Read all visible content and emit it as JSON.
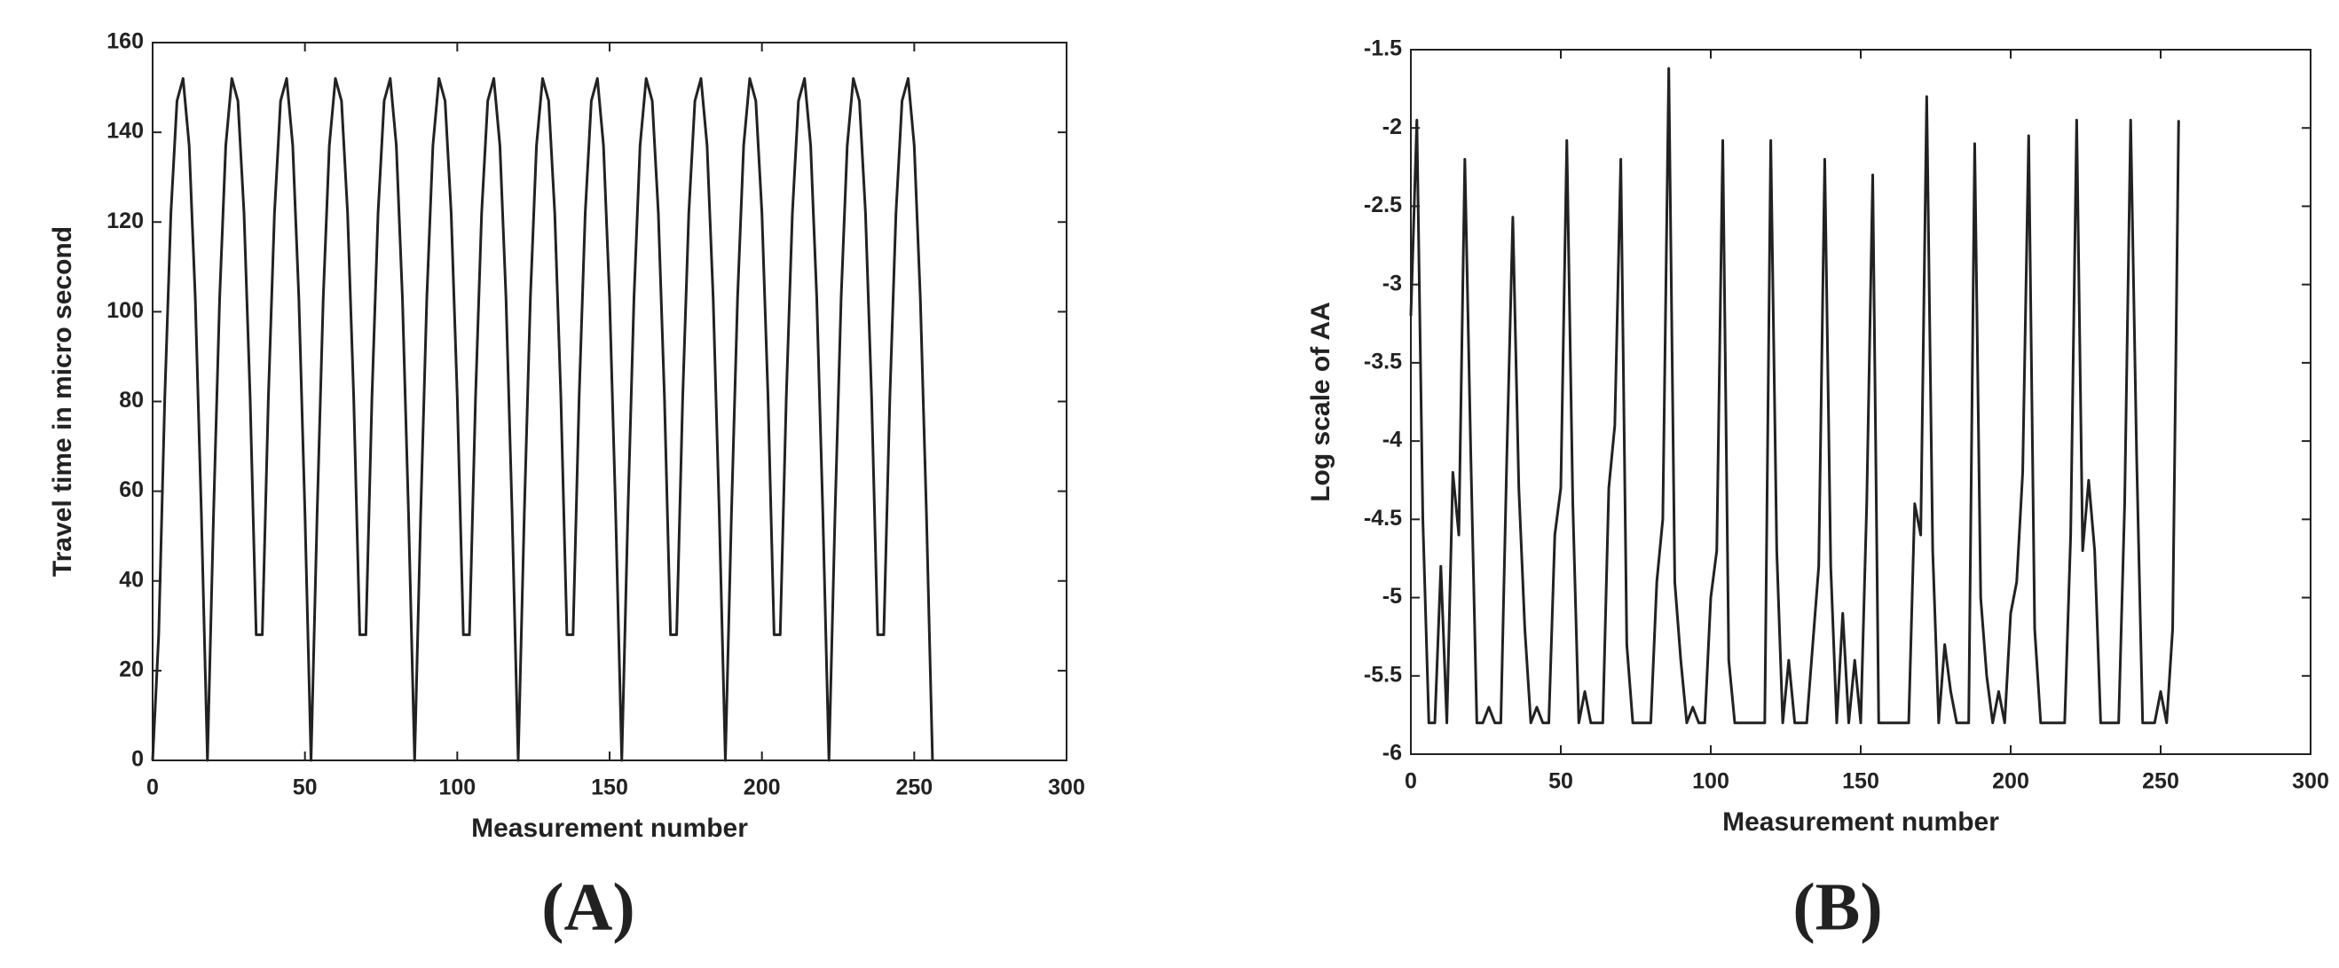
{
  "chart_data": [
    {
      "type": "line",
      "panel_label": "(A)",
      "x_label": "Measurement number",
      "y_label": "Travel time in micro second",
      "color": "#222222",
      "xlim": [
        0,
        300
      ],
      "xticks": [
        0,
        50,
        100,
        150,
        200,
        250,
        300
      ],
      "ylim": [
        0,
        160
      ],
      "yticks": [
        0,
        20,
        40,
        60,
        80,
        100,
        120,
        140,
        160
      ],
      "x": [
        0,
        2,
        4,
        6,
        8,
        10,
        12,
        14,
        16,
        18,
        20,
        22,
        24,
        26,
        28,
        30,
        32,
        34,
        36,
        38,
        40,
        42,
        44,
        46,
        48,
        50,
        52,
        54,
        56,
        58,
        60,
        62,
        64,
        66,
        68,
        70,
        72,
        74,
        76,
        78,
        80,
        82,
        84,
        86,
        88,
        90,
        92,
        94,
        96,
        98,
        100,
        102,
        104,
        106,
        108,
        110,
        112,
        114,
        116,
        118,
        120,
        122,
        124,
        126,
        128,
        130,
        132,
        134,
        136,
        138,
        140,
        142,
        144,
        146,
        148,
        150,
        152,
        154,
        156,
        158,
        160,
        162,
        164,
        166,
        168,
        170,
        172,
        174,
        176,
        178,
        180,
        182,
        184,
        186,
        188,
        190,
        192,
        194,
        196,
        198,
        200,
        202,
        204,
        206,
        208,
        210,
        212,
        214,
        216,
        218,
        220,
        222,
        224,
        226,
        228,
        230,
        232,
        234,
        236,
        238,
        240,
        242,
        244,
        246,
        248,
        250,
        252,
        254,
        256
      ],
      "values": [
        0,
        28,
        81,
        122,
        147,
        152,
        137,
        103,
        55,
        0,
        55,
        103,
        137,
        152,
        147,
        122,
        81,
        28,
        28,
        81,
        122,
        147,
        152,
        137,
        103,
        55,
        0,
        55,
        103,
        137,
        152,
        147,
        122,
        81,
        28,
        28,
        81,
        122,
        147,
        152,
        137,
        103,
        55,
        0,
        55,
        103,
        137,
        152,
        147,
        122,
        81,
        28,
        28,
        81,
        122,
        147,
        152,
        137,
        103,
        55,
        0,
        55,
        103,
        137,
        152,
        147,
        122,
        81,
        28,
        28,
        81,
        122,
        147,
        152,
        137,
        103,
        55,
        0,
        55,
        103,
        137,
        152,
        147,
        122,
        81,
        28,
        28,
        81,
        122,
        147,
        152,
        137,
        103,
        55,
        0,
        55,
        103,
        137,
        152,
        147,
        122,
        81,
        28,
        28,
        81,
        122,
        147,
        152,
        137,
        103,
        55,
        0,
        55,
        103,
        137,
        152,
        147,
        122,
        81,
        28,
        28,
        81,
        122,
        147,
        152,
        137,
        103,
        55,
        0
      ]
    },
    {
      "type": "line",
      "panel_label": "(B)",
      "x_label": "Measurement number",
      "y_label": "Log scale of AA",
      "color": "#222222",
      "xlim": [
        0,
        300
      ],
      "xticks": [
        0,
        50,
        100,
        150,
        200,
        250,
        300
      ],
      "ylim": [
        -6,
        -1.5
      ],
      "yticks": [
        -6,
        -5.5,
        -5,
        -4.5,
        -4,
        -3.5,
        -3,
        -2.5,
        -2,
        -1.5
      ],
      "x": [
        0,
        2,
        4,
        6,
        8,
        10,
        12,
        14,
        16,
        18,
        20,
        22,
        24,
        26,
        28,
        30,
        32,
        34,
        36,
        38,
        40,
        42,
        44,
        46,
        48,
        50,
        52,
        54,
        56,
        58,
        60,
        62,
        64,
        66,
        68,
        70,
        72,
        74,
        76,
        78,
        80,
        82,
        84,
        86,
        88,
        90,
        92,
        94,
        96,
        98,
        100,
        102,
        104,
        106,
        108,
        110,
        112,
        114,
        116,
        118,
        120,
        122,
        124,
        126,
        128,
        130,
        132,
        134,
        136,
        138,
        140,
        142,
        144,
        146,
        148,
        150,
        152,
        154,
        156,
        158,
        160,
        162,
        164,
        166,
        168,
        170,
        172,
        174,
        176,
        178,
        180,
        182,
        184,
        186,
        188,
        190,
        192,
        194,
        196,
        198,
        200,
        202,
        204,
        206,
        208,
        210,
        212,
        214,
        216,
        218,
        220,
        222,
        224,
        226,
        228,
        230,
        232,
        234,
        236,
        238,
        240,
        242,
        244,
        246,
        248,
        250,
        252,
        254,
        256
      ],
      "values": [
        -3.2,
        -1.95,
        -4.5,
        -5.8,
        -5.8,
        -4.8,
        -5.8,
        -4.2,
        -4.6,
        -2.2,
        -4.1,
        -5.8,
        -5.8,
        -5.7,
        -5.8,
        -5.8,
        -4.1,
        -2.57,
        -4.3,
        -5.2,
        -5.8,
        -5.7,
        -5.8,
        -5.8,
        -4.6,
        -4.3,
        -2.08,
        -4.4,
        -5.8,
        -5.6,
        -5.8,
        -5.8,
        -5.8,
        -4.3,
        -3.9,
        -2.2,
        -5.3,
        -5.8,
        -5.8,
        -5.8,
        -5.8,
        -4.9,
        -4.5,
        -1.62,
        -4.9,
        -5.4,
        -5.8,
        -5.7,
        -5.8,
        -5.8,
        -5.0,
        -4.7,
        -2.08,
        -5.4,
        -5.8,
        -5.8,
        -5.8,
        -5.8,
        -5.8,
        -5.8,
        -2.08,
        -4.7,
        -5.8,
        -5.4,
        -5.8,
        -5.8,
        -5.8,
        -5.3,
        -4.8,
        -2.2,
        -4.8,
        -5.8,
        -5.1,
        -5.8,
        -5.4,
        -5.8,
        -4.4,
        -2.3,
        -5.8,
        -5.8,
        -5.8,
        -5.8,
        -5.8,
        -5.8,
        -4.4,
        -4.6,
        -1.8,
        -4.7,
        -5.8,
        -5.3,
        -5.6,
        -5.8,
        -5.8,
        -5.8,
        -2.1,
        -5.0,
        -5.5,
        -5.8,
        -5.6,
        -5.8,
        -5.1,
        -4.9,
        -4.2,
        -2.05,
        -5.2,
        -5.8,
        -5.8,
        -5.8,
        -5.8,
        -5.8,
        -4.6,
        -1.95,
        -4.7,
        -4.25,
        -4.7,
        -5.8,
        -5.8,
        -5.8,
        -5.8,
        -4.4,
        -1.95,
        -4.1,
        -5.8,
        -5.8,
        -5.8,
        -5.6,
        -5.8,
        -5.2,
        -1.95
      ]
    }
  ]
}
